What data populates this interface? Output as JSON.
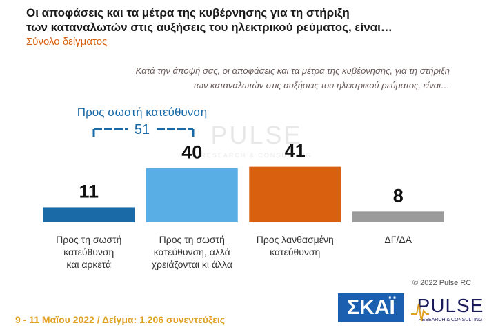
{
  "chart_data": {
    "type": "bar",
    "title": "Οι αποφάσεις και τα μέτρα της κυβέρνησης για τη στήριξη\nτων καταναλωτών στις αυξήσεις του ηλεκτρικού ρεύματος, είναι…",
    "subtitle": "Σύνολο δείγματος",
    "question": "Κατά την άποψή σας, οι αποφάσεις και τα μέτρα της κυβέρνησης, για τη στήριξη\nτων καταναλωτών στις αυξήσεις του ηλεκτρικού ρεύματος, είναι…",
    "categories": [
      "Προς τη σωστή\nκατεύθυνση\nκαι αρκετά",
      "Προς τη σωστή\nκατεύθυνση, αλλά\nχρειάζονται κι άλλα",
      "Προς λανθασμένη\nκατεύθυνση",
      "ΔΓ/ΔΑ"
    ],
    "values": [
      11,
      40,
      41,
      8
    ],
    "colors": [
      "#1a6aa8",
      "#5aaee6",
      "#d9600e",
      "#9b9b9b"
    ],
    "annotation": {
      "label": "Προς σωστή κατεύθυνση",
      "value": 51
    },
    "footer": "9 - 11 Μαΐου 2022  /  Δείγμα:  1.206 συνεντεύξεις",
    "copyright": "© 2022 Pulse RC",
    "logos": {
      "broadcaster": "ΣΚΑΪ",
      "pulse": "PULSE",
      "pulse_tagline": "RESEARCH & CONSULTING"
    }
  }
}
